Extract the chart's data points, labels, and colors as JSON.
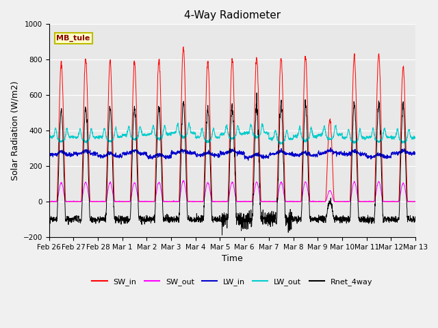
{
  "title": "4-Way Radiometer",
  "xlabel": "Time",
  "ylabel": "Solar Radiation (W/m2)",
  "ylim": [
    -200,
    1000
  ],
  "annotation": "MB_tule",
  "plot_bg_color": "#e8e8e8",
  "fig_bg_color": "#f0f0f0",
  "tick_labels": [
    "Feb 26",
    "Feb 27",
    "Feb 28",
    "Mar 1",
    "Mar 2",
    "Mar 3",
    "Mar 4",
    "Mar 5",
    "Mar 6",
    "Mar 7",
    "Mar 8",
    "Mar 9",
    "Mar 10",
    "Mar 11",
    "Mar 12",
    "Mar 13"
  ],
  "n_days": 15,
  "pts_per_day": 144,
  "series_colors": {
    "SW_in": "#ff0000",
    "SW_out": "#ff00ff",
    "LW_in": "#0000cc",
    "LW_out": "#00cccc",
    "Rnet_4way": "#000000"
  },
  "legend_labels": [
    "SW_in",
    "SW_out",
    "LW_in",
    "LW_out",
    "Rnet_4way"
  ],
  "sw_in_peaks": [
    780,
    800,
    790,
    790,
    800,
    870,
    790,
    800,
    810,
    810,
    820,
    460,
    820,
    830,
    760
  ],
  "rnet_peaks": [
    520,
    530,
    530,
    530,
    530,
    560,
    520,
    530,
    540,
    540,
    550,
    0,
    550,
    545,
    540
  ],
  "lw_out_base": 370,
  "lw_in_base": 265,
  "sw_out_ratio": 0.135,
  "night_rnet": -100
}
